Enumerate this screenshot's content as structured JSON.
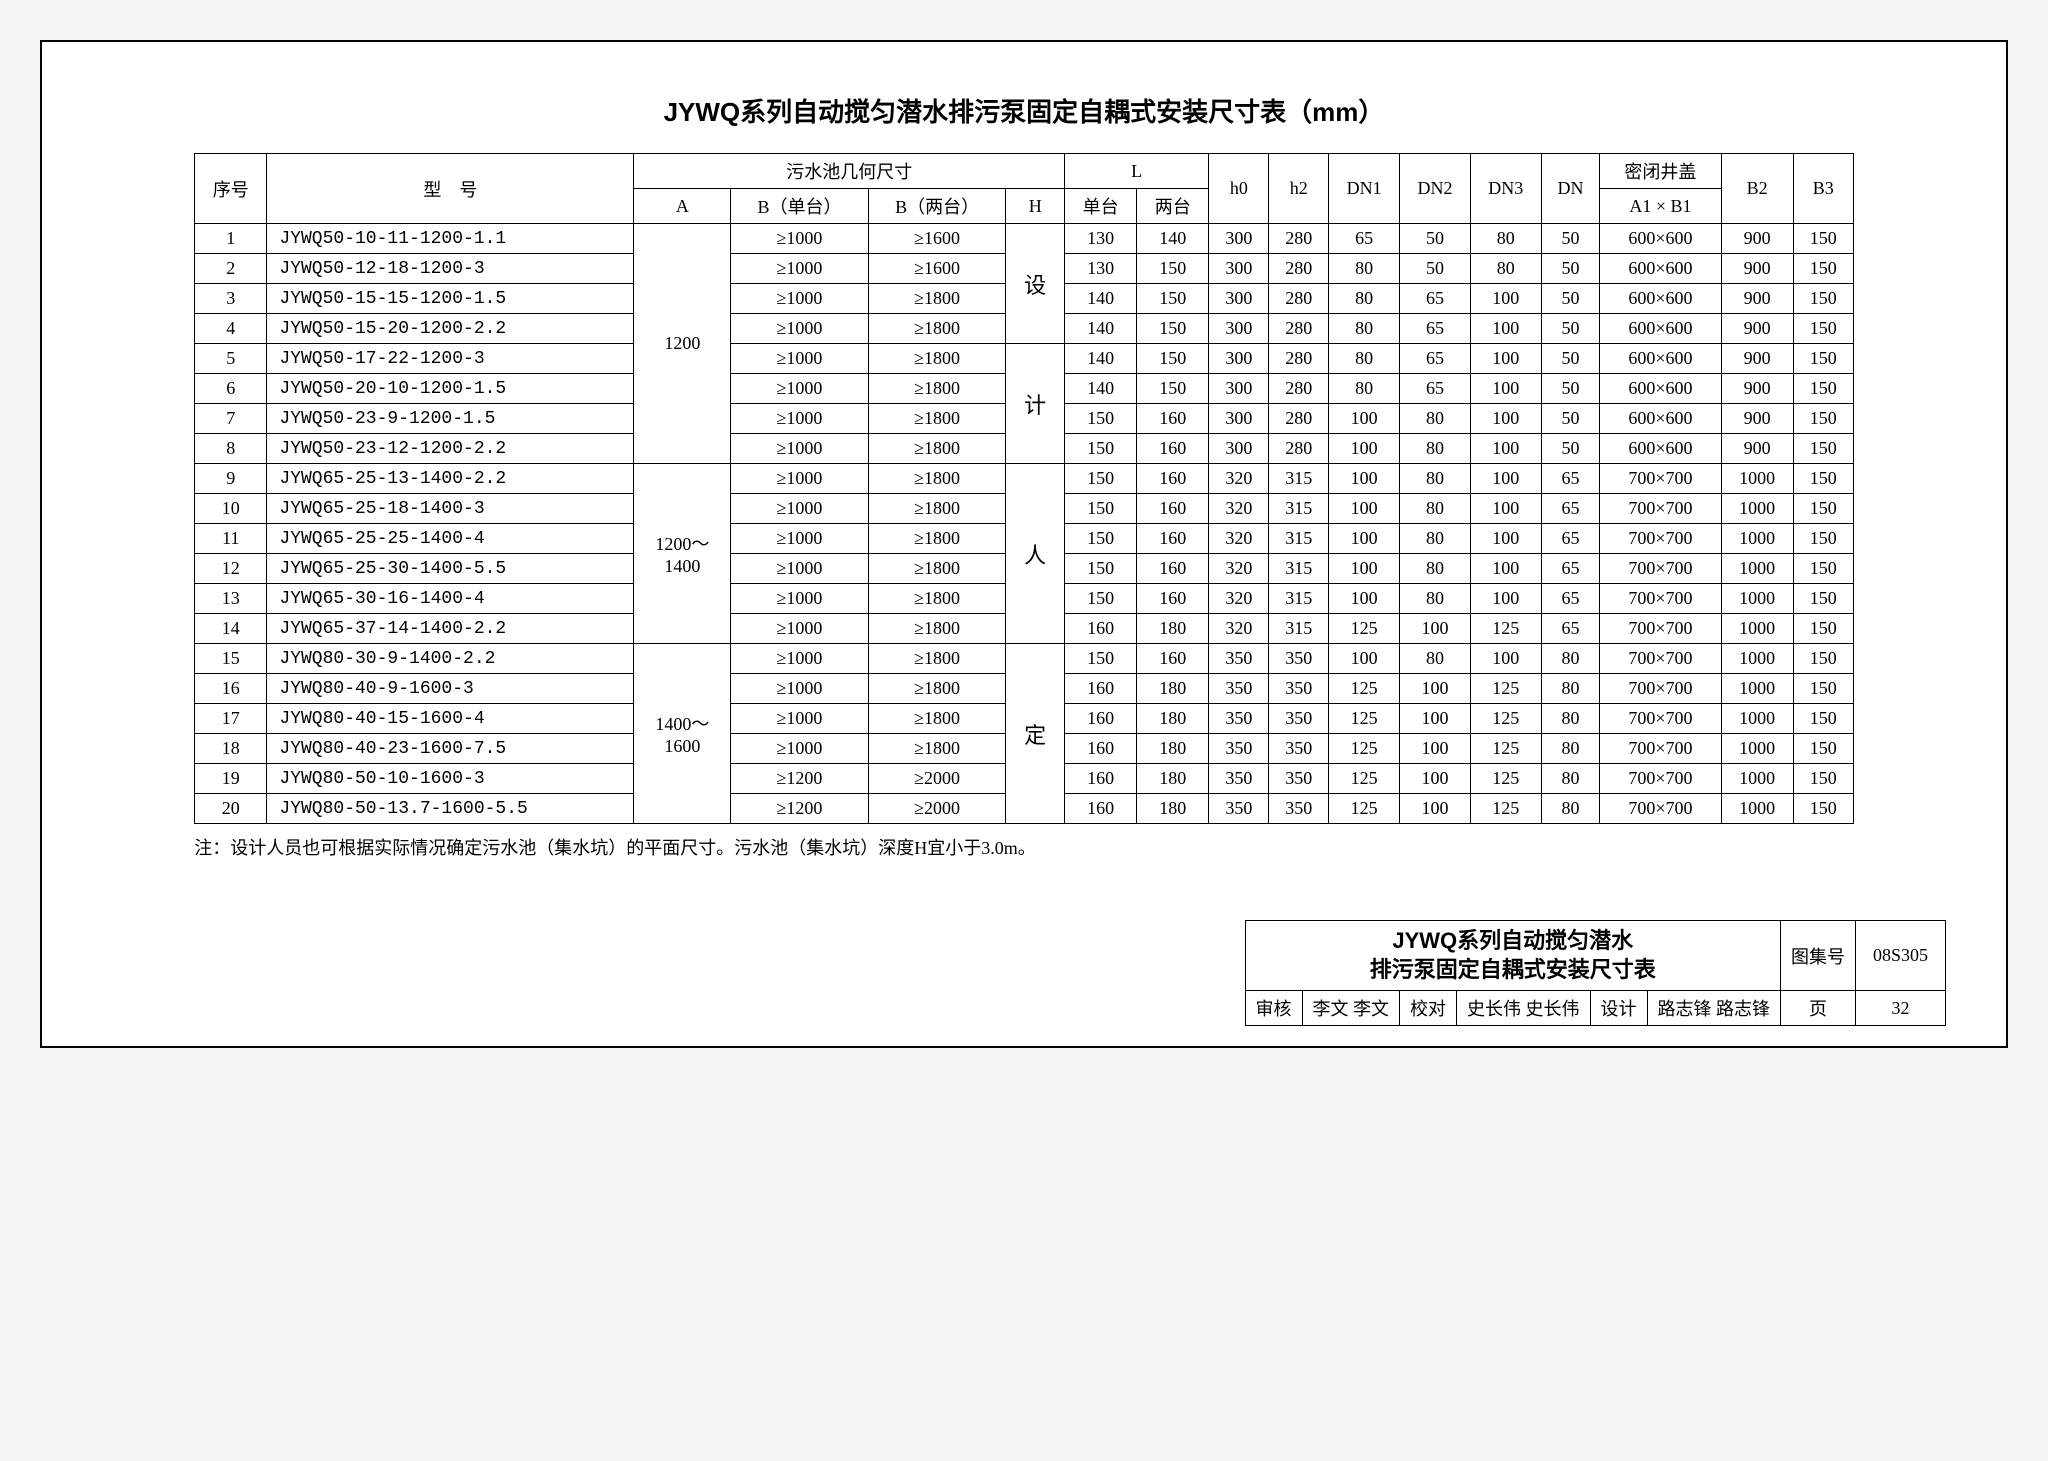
{
  "title": "JYWQ系列自动搅匀潜水排污泵固定自耦式安装尺寸表（mm）",
  "headers": {
    "seq": "序号",
    "model": "型　号",
    "pool": "污水池几何尺寸",
    "A": "A",
    "Bsingle": "B（单台）",
    "Bdouble": "B（两台）",
    "H": "H",
    "L": "L",
    "Lsingle": "单台",
    "Ldouble": "两台",
    "h0": "h0",
    "h2": "h2",
    "DN1": "DN1",
    "DN2": "DN2",
    "DN3": "DN3",
    "DN": "DN",
    "cover": "密闭井盖",
    "A1B1": "A1 × B1",
    "B2": "B2",
    "B3": "B3"
  },
  "groups": [
    {
      "A": "1200",
      "Hchar": "设",
      "rows": [
        {
          "seq": "1",
          "model": "JYWQ50-10-11-1200-1.1",
          "Bs": "≥1000",
          "Bd": "≥1600",
          "Ls": "130",
          "Ld": "140",
          "h0": "300",
          "h2": "280",
          "DN1": "65",
          "DN2": "50",
          "DN3": "80",
          "DN": "50",
          "cover": "600×600",
          "B2": "900",
          "B3": "150"
        },
        {
          "seq": "2",
          "model": "JYWQ50-12-18-1200-3",
          "Bs": "≥1000",
          "Bd": "≥1600",
          "Ls": "130",
          "Ld": "150",
          "h0": "300",
          "h2": "280",
          "DN1": "80",
          "DN2": "50",
          "DN3": "80",
          "DN": "50",
          "cover": "600×600",
          "B2": "900",
          "B3": "150"
        }
      ]
    },
    {
      "A": "",
      "Hchar": "",
      "rows": [
        {
          "seq": "3",
          "model": "JYWQ50-15-15-1200-1.5",
          "Bs": "≥1000",
          "Bd": "≥1800",
          "Ls": "140",
          "Ld": "150",
          "h0": "300",
          "h2": "280",
          "DN1": "80",
          "DN2": "65",
          "DN3": "100",
          "DN": "50",
          "cover": "600×600",
          "B2": "900",
          "B3": "150"
        },
        {
          "seq": "4",
          "model": "JYWQ50-15-20-1200-2.2",
          "Bs": "≥1000",
          "Bd": "≥1800",
          "Ls": "140",
          "Ld": "150",
          "h0": "300",
          "h2": "280",
          "DN1": "80",
          "DN2": "65",
          "DN3": "100",
          "DN": "50",
          "cover": "600×600",
          "B2": "900",
          "B3": "150"
        },
        {
          "seq": "5",
          "model": "JYWQ50-17-22-1200-3",
          "Bs": "≥1000",
          "Bd": "≥1800",
          "Ls": "140",
          "Ld": "150",
          "h0": "300",
          "h2": "280",
          "DN1": "80",
          "DN2": "65",
          "DN3": "100",
          "DN": "50",
          "cover": "600×600",
          "B2": "900",
          "B3": "150"
        },
        {
          "seq": "6",
          "model": "JYWQ50-20-10-1200-1.5",
          "Bs": "≥1000",
          "Bd": "≥1800",
          "Ls": "140",
          "Ld": "150",
          "h0": "300",
          "h2": "280",
          "DN1": "80",
          "DN2": "65",
          "DN3": "100",
          "DN": "50",
          "cover": "600×600",
          "B2": "900",
          "B3": "150"
        }
      ]
    },
    {
      "A": "",
      "Hchar": "计",
      "rows": [
        {
          "seq": "7",
          "model": "JYWQ50-23-9-1200-1.5",
          "Bs": "≥1000",
          "Bd": "≥1800",
          "Ls": "150",
          "Ld": "160",
          "h0": "300",
          "h2": "280",
          "DN1": "100",
          "DN2": "80",
          "DN3": "100",
          "DN": "50",
          "cover": "600×600",
          "B2": "900",
          "B3": "150"
        },
        {
          "seq": "8",
          "model": "JYWQ50-23-12-1200-2.2",
          "Bs": "≥1000",
          "Bd": "≥1800",
          "Ls": "150",
          "Ld": "160",
          "h0": "300",
          "h2": "280",
          "DN1": "100",
          "DN2": "80",
          "DN3": "100",
          "DN": "50",
          "cover": "600×600",
          "B2": "900",
          "B3": "150"
        }
      ]
    },
    {
      "A": "1200～1400",
      "Hchar": "人",
      "rows": [
        {
          "seq": "9",
          "model": "JYWQ65-25-13-1400-2.2",
          "Bs": "≥1000",
          "Bd": "≥1800",
          "Ls": "150",
          "Ld": "160",
          "h0": "320",
          "h2": "315",
          "DN1": "100",
          "DN2": "80",
          "DN3": "100",
          "DN": "65",
          "cover": "700×700",
          "B2": "1000",
          "B3": "150"
        },
        {
          "seq": "10",
          "model": "JYWQ65-25-18-1400-3",
          "Bs": "≥1000",
          "Bd": "≥1800",
          "Ls": "150",
          "Ld": "160",
          "h0": "320",
          "h2": "315",
          "DN1": "100",
          "DN2": "80",
          "DN3": "100",
          "DN": "65",
          "cover": "700×700",
          "B2": "1000",
          "B3": "150"
        },
        {
          "seq": "11",
          "model": "JYWQ65-25-25-1400-4",
          "Bs": "≥1000",
          "Bd": "≥1800",
          "Ls": "150",
          "Ld": "160",
          "h0": "320",
          "h2": "315",
          "DN1": "100",
          "DN2": "80",
          "DN3": "100",
          "DN": "65",
          "cover": "700×700",
          "B2": "1000",
          "B3": "150"
        },
        {
          "seq": "12",
          "model": "JYWQ65-25-30-1400-5.5",
          "Bs": "≥1000",
          "Bd": "≥1800",
          "Ls": "150",
          "Ld": "160",
          "h0": "320",
          "h2": "315",
          "DN1": "100",
          "DN2": "80",
          "DN3": "100",
          "DN": "65",
          "cover": "700×700",
          "B2": "1000",
          "B3": "150"
        },
        {
          "seq": "13",
          "model": "JYWQ65-30-16-1400-4",
          "Bs": "≥1000",
          "Bd": "≥1800",
          "Ls": "150",
          "Ld": "160",
          "h0": "320",
          "h2": "315",
          "DN1": "100",
          "DN2": "80",
          "DN3": "100",
          "DN": "65",
          "cover": "700×700",
          "B2": "1000",
          "B3": "150"
        },
        {
          "seq": "14",
          "model": "JYWQ65-37-14-1400-2.2",
          "Bs": "≥1000",
          "Bd": "≥1800",
          "Ls": "160",
          "Ld": "180",
          "h0": "320",
          "h2": "315",
          "DN1": "125",
          "DN2": "100",
          "DN3": "125",
          "DN": "65",
          "cover": "700×700",
          "B2": "1000",
          "B3": "150"
        }
      ]
    },
    {
      "A": "1400～1600",
      "Hchar": "定",
      "rows": [
        {
          "seq": "15",
          "model": "JYWQ80-30-9-1400-2.2",
          "Bs": "≥1000",
          "Bd": "≥1800",
          "Ls": "150",
          "Ld": "160",
          "h0": "350",
          "h2": "350",
          "DN1": "100",
          "DN2": "80",
          "DN3": "100",
          "DN": "80",
          "cover": "700×700",
          "B2": "1000",
          "B3": "150"
        },
        {
          "seq": "16",
          "model": "JYWQ80-40-9-1600-3",
          "Bs": "≥1000",
          "Bd": "≥1800",
          "Ls": "160",
          "Ld": "180",
          "h0": "350",
          "h2": "350",
          "DN1": "125",
          "DN2": "100",
          "DN3": "125",
          "DN": "80",
          "cover": "700×700",
          "B2": "1000",
          "B3": "150"
        },
        {
          "seq": "17",
          "model": "JYWQ80-40-15-1600-4",
          "Bs": "≥1000",
          "Bd": "≥1800",
          "Ls": "160",
          "Ld": "180",
          "h0": "350",
          "h2": "350",
          "DN1": "125",
          "DN2": "100",
          "DN3": "125",
          "DN": "80",
          "cover": "700×700",
          "B2": "1000",
          "B3": "150"
        },
        {
          "seq": "18",
          "model": "JYWQ80-40-23-1600-7.5",
          "Bs": "≥1000",
          "Bd": "≥1800",
          "Ls": "160",
          "Ld": "180",
          "h0": "350",
          "h2": "350",
          "DN1": "125",
          "DN2": "100",
          "DN3": "125",
          "DN": "80",
          "cover": "700×700",
          "B2": "1000",
          "B3": "150"
        },
        {
          "seq": "19",
          "model": "JYWQ80-50-10-1600-3",
          "Bs": "≥1200",
          "Bd": "≥2000",
          "Ls": "160",
          "Ld": "180",
          "h0": "350",
          "h2": "350",
          "DN1": "125",
          "DN2": "100",
          "DN3": "125",
          "DN": "80",
          "cover": "700×700",
          "B2": "1000",
          "B3": "150"
        },
        {
          "seq": "20",
          "model": "JYWQ80-50-13.7-1600-5.5",
          "Bs": "≥1200",
          "Bd": "≥2000",
          "Ls": "160",
          "Ld": "180",
          "h0": "350",
          "h2": "350",
          "DN1": "125",
          "DN2": "100",
          "DN3": "125",
          "DN": "80",
          "cover": "700×700",
          "B2": "1000",
          "B3": "150"
        }
      ]
    }
  ],
  "A_spans": [
    {
      "text": "1200",
      "rowspan": 8
    },
    {
      "text": "1200～\n1400",
      "rowspan": 6
    },
    {
      "text": "1400～\n1600",
      "rowspan": 6
    }
  ],
  "H_spans": [
    {
      "text": "设",
      "rowspan": 4
    },
    {
      "text": "计",
      "rowspan": 4
    },
    {
      "text": "人",
      "rowspan": 6
    },
    {
      "text": "定",
      "rowspan": 6
    }
  ],
  "note": "注：设计人员也可根据实际情况确定污水池（集水坑）的平面尺寸。污水池（集水坑）深度H宜小于3.0m。",
  "titleblock": {
    "main1": "JYWQ系列自动搅匀潜水",
    "main2": "排污泵固定自耦式安装尺寸表",
    "albumLabel": "图集号",
    "album": "08S305",
    "reviewLabel": "审核",
    "review": "李文",
    "reviewSig": "李文",
    "checkLabel": "校对",
    "check": "史长伟",
    "checkSig": "史长伟",
    "designLabel": "设计",
    "design": "路志锋",
    "designSig": "路志锋",
    "pageLabel": "页",
    "page": "32"
  }
}
